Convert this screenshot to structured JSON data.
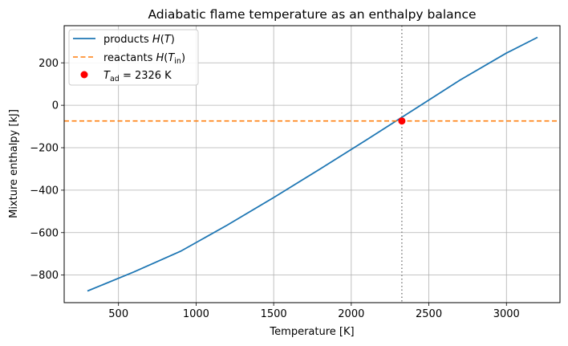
{
  "chart_data": {
    "type": "line",
    "title": "Adiabatic flame temperature as an enthalpy balance",
    "xlabel": "Temperature [K]",
    "ylabel": "Mixture enthalpy [kJ]",
    "xlim": [
      150,
      3345
    ],
    "ylim": [
      -930,
      375
    ],
    "xticks": [
      500,
      1000,
      1500,
      2000,
      2500,
      3000
    ],
    "yticks": [
      -800,
      -600,
      -400,
      -200,
      0,
      200
    ],
    "grid": true,
    "legend_position": "upper-left",
    "series": [
      {
        "name": "products H(T)",
        "legend_main": "products ",
        "legend_italic": "H",
        "legend_tail": "(T)",
        "style": "solid",
        "color": "#1f77b4",
        "x": [
          300,
          600,
          900,
          1200,
          1500,
          1800,
          2100,
          2400,
          2700,
          3000,
          3200
        ],
        "y": [
          -875,
          -785,
          -688,
          -565,
          -435,
          -300,
          -162,
          -22,
          118,
          246,
          320
        ]
      },
      {
        "name": "reactants H(T_in)",
        "legend_main": "reactants ",
        "legend_italic": "H",
        "legend_tail": "(T",
        "legend_sub": "in",
        "legend_close": ")",
        "style": "dashed",
        "color": "#ff7f0e",
        "y_constant": -74
      },
      {
        "name": "T_ad = 2326 K",
        "legend_italic": "T",
        "legend_sub": "ad",
        "legend_tail": " = 2326 K",
        "style": "marker",
        "color": "#ff0000",
        "x": [
          2326
        ],
        "y": [
          -74
        ]
      }
    ],
    "vline": {
      "x": 2326,
      "style": "dotted",
      "color": "#808080"
    }
  }
}
